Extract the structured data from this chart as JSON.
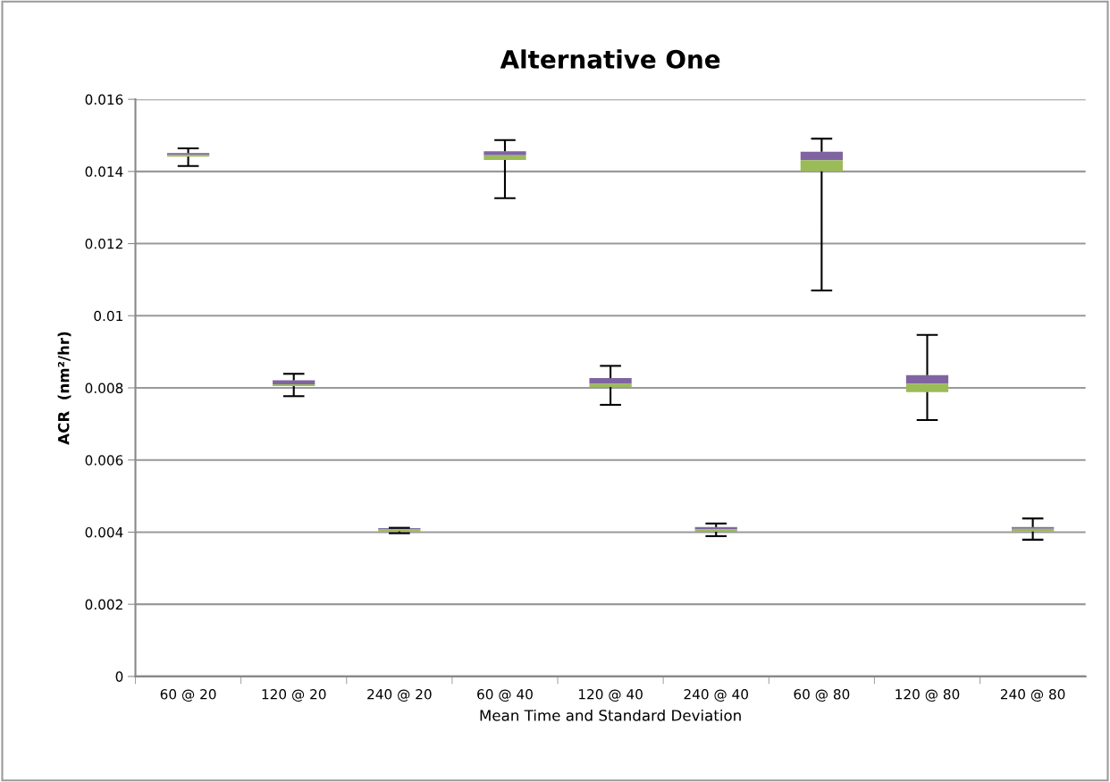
{
  "chart_data": {
    "type": "box",
    "title": "Alternative One",
    "xlabel": "Mean Time and Standard Deviation",
    "ylabel": "ACR  (nm²/hr)",
    "categories": [
      "60 @ 20",
      "120 @ 20",
      "240 @ 20",
      "60 @ 40",
      "120 @ 40",
      "240 @ 40",
      "60 @ 80",
      "120 @ 80",
      "240 @ 80"
    ],
    "series": [
      {
        "color": "#8064a2",
        "colors": [
          "#9bbb59",
          "#9bbb59",
          "#9bbb59",
          "#9bbb59",
          "#9bbb59",
          "#9bbb59",
          "#9bbb59",
          "#9bbb59",
          "#9bbb59"
        ],
        "boxes": [
          {
            "low": 0.01415,
            "q1": 0.01441,
            "median": 0.01446,
            "q3": 0.01451,
            "high": 0.01464
          },
          {
            "low": 0.00777,
            "q1": 0.00805,
            "median": 0.0081,
            "q3": 0.00821,
            "high": 0.00839
          },
          {
            "low": 0.00397,
            "q1": 0.00402,
            "median": 0.00407,
            "q3": 0.00411,
            "high": 0.00412
          },
          {
            "low": 0.01326,
            "q1": 0.01432,
            "median": 0.01445,
            "q3": 0.01456,
            "high": 0.01487
          },
          {
            "low": 0.00753,
            "q1": 0.00802,
            "median": 0.00811,
            "q3": 0.00827,
            "high": 0.00861
          },
          {
            "low": 0.00389,
            "q1": 0.00401,
            "median": 0.00408,
            "q3": 0.00414,
            "high": 0.00424
          },
          {
            "low": 0.0107,
            "q1": 0.014,
            "median": 0.01431,
            "q3": 0.01455,
            "high": 0.01491
          },
          {
            "low": 0.00711,
            "q1": 0.00788,
            "median": 0.00812,
            "q3": 0.00835,
            "high": 0.00947
          },
          {
            "low": 0.00379,
            "q1": 0.00402,
            "median": 0.00409,
            "q3": 0.00414,
            "high": 0.00438
          }
        ]
      }
    ],
    "ylim": [
      0,
      0.016
    ],
    "yticks": [
      0,
      0.002,
      0.004,
      0.006,
      0.008,
      0.01,
      0.012,
      0.014,
      0.016
    ],
    "grid": "y"
  }
}
